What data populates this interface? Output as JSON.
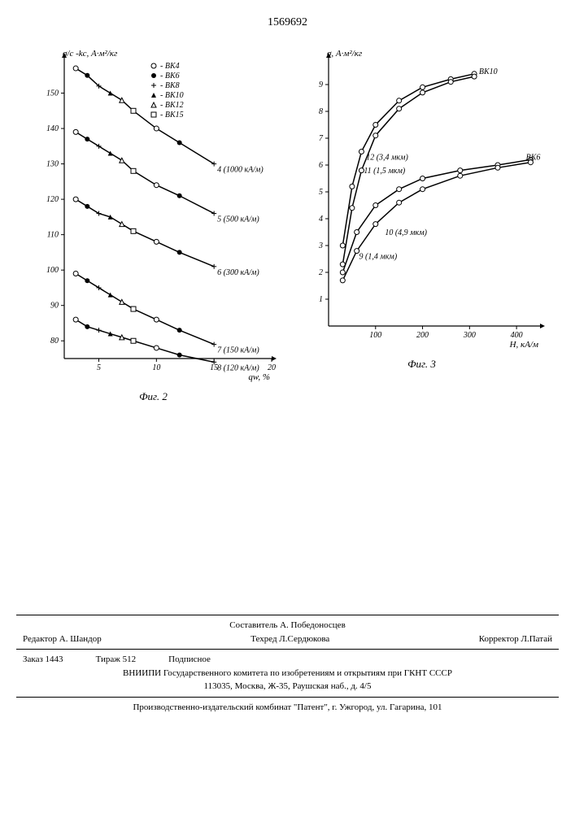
{
  "page_number": "1569692",
  "fig2": {
    "type": "line-scatter",
    "ylabel": "σ/c -kc, А·м²/кг",
    "xlabel": "qw, %",
    "xlim": [
      2,
      20
    ],
    "ylim": [
      75,
      160
    ],
    "xticks": [
      5,
      10,
      15,
      20
    ],
    "yticks": [
      80,
      90,
      100,
      110,
      120,
      130,
      140,
      150
    ],
    "caption": "Фиг. 2",
    "legend": [
      {
        "marker": "circle-open",
        "label": "ВК4"
      },
      {
        "marker": "circle-filled",
        "label": "ВК6"
      },
      {
        "marker": "plus",
        "label": "ВК8"
      },
      {
        "marker": "triangle-filled",
        "label": "ВК10"
      },
      {
        "marker": "triangle-open",
        "label": "ВК12"
      },
      {
        "marker": "square-open",
        "label": "ВК15"
      }
    ],
    "curves": [
      {
        "label": "4 (1000 кА/м)",
        "x": [
          3,
          4,
          5,
          6,
          7,
          8,
          10,
          12,
          15
        ],
        "y": [
          157,
          155,
          152,
          150,
          148,
          145,
          140,
          136,
          130
        ]
      },
      {
        "label": "5 (500 кА/м)",
        "x": [
          3,
          4,
          5,
          6,
          7,
          8,
          10,
          12,
          15
        ],
        "y": [
          139,
          137,
          135,
          133,
          131,
          128,
          124,
          121,
          116
        ]
      },
      {
        "label": "6 (300 кА/м)",
        "x": [
          3,
          4,
          5,
          6,
          7,
          8,
          10,
          12,
          15
        ],
        "y": [
          120,
          118,
          116,
          115,
          113,
          111,
          108,
          105,
          101
        ]
      },
      {
        "label": "7 (150 кА/м)",
        "x": [
          3,
          4,
          5,
          6,
          7,
          8,
          10,
          12,
          15
        ],
        "y": [
          99,
          97,
          95,
          93,
          91,
          89,
          86,
          83,
          79
        ]
      },
      {
        "label": "8 (120 кА/м)",
        "x": [
          3,
          4,
          5,
          6,
          7,
          8,
          10,
          12,
          15
        ],
        "y": [
          86,
          84,
          83,
          82,
          81,
          80,
          78,
          76,
          74
        ]
      }
    ],
    "colors": {
      "line": "#000000",
      "bg": "#ffffff"
    }
  },
  "fig3": {
    "type": "line-scatter",
    "ylabel": "σ, А·м²/кг",
    "xlabel": "H, кА/м",
    "xlim": [
      0,
      450
    ],
    "ylim": [
      0,
      10
    ],
    "xticks": [
      100,
      200,
      300,
      400
    ],
    "yticks": [
      1,
      2,
      3,
      4,
      5,
      6,
      7,
      8,
      9
    ],
    "caption": "Фиг. 3",
    "series_labels": [
      {
        "text": "ВК10",
        "x": 320,
        "y": 9.4
      },
      {
        "text": "ВК6",
        "x": 420,
        "y": 6.2
      },
      {
        "text": "12 (3,4 мкм)",
        "x": 80,
        "y": 6.2
      },
      {
        "text": "11 (1,5 мкм)",
        "x": 75,
        "y": 5.7
      },
      {
        "text": "10 (4,9 мкм)",
        "x": 120,
        "y": 3.4
      },
      {
        "text": "9 (1,4 мкм)",
        "x": 65,
        "y": 2.5
      }
    ],
    "curves": [
      {
        "name": "vk10-12",
        "x": [
          30,
          50,
          70,
          100,
          150,
          200,
          260,
          310
        ],
        "y": [
          3.0,
          5.2,
          6.5,
          7.5,
          8.4,
          8.9,
          9.2,
          9.4
        ]
      },
      {
        "name": "vk10-11",
        "x": [
          30,
          50,
          70,
          100,
          150,
          200,
          260,
          310
        ],
        "y": [
          2.3,
          4.4,
          5.8,
          7.1,
          8.1,
          8.7,
          9.1,
          9.3
        ]
      },
      {
        "name": "vk6-10",
        "x": [
          30,
          60,
          100,
          150,
          200,
          280,
          360,
          430
        ],
        "y": [
          2.0,
          3.5,
          4.5,
          5.1,
          5.5,
          5.8,
          6.0,
          6.2
        ]
      },
      {
        "name": "vk6-9",
        "x": [
          30,
          60,
          100,
          150,
          200,
          280,
          360,
          430
        ],
        "y": [
          1.7,
          2.8,
          3.8,
          4.6,
          5.1,
          5.6,
          5.9,
          6.1
        ]
      }
    ],
    "colors": {
      "line": "#000000",
      "bg": "#ffffff"
    }
  },
  "footer": {
    "compiler": "Составитель А. Победоносцев",
    "editor": "Редактор А. Шандор",
    "tech": "Техред Л.Сердюкова",
    "corrector": "Корректор Л.Патай",
    "order": "Заказ 1443",
    "tirage": "Тираж 512",
    "sub": "Подписное",
    "org": "ВНИИПИ Государственного комитета по изобретениям и открытиям при ГКНТ СССР",
    "addr": "113035, Москва, Ж-35, Раушская наб., д. 4/5",
    "printer": "Производственно-издательский комбинат \"Патент\", г. Ужгород, ул. Гагарина, 101"
  }
}
